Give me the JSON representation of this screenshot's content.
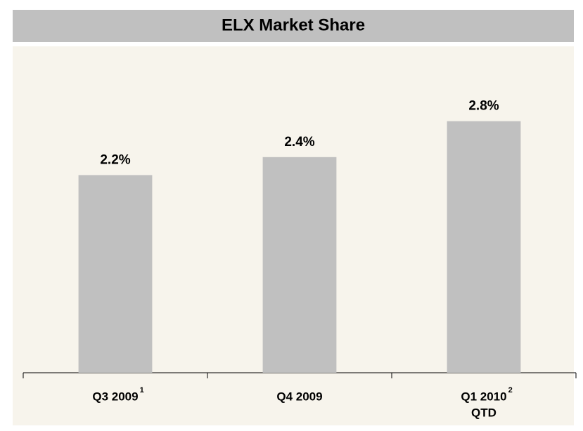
{
  "chart_data": {
    "type": "bar",
    "title": "ELX Market Share",
    "categories": [
      "Q3 2009",
      "Q4 2009",
      "Q1 2010"
    ],
    "category_notes": [
      null,
      null,
      "QTD"
    ],
    "footnotes": [
      "1",
      null,
      "2"
    ],
    "values": [
      2.2,
      2.4,
      2.8
    ],
    "value_labels": [
      "2.2%",
      "2.4%",
      "2.8%"
    ],
    "color": "#c0c0c0",
    "ylim": [
      0,
      3.0
    ]
  }
}
